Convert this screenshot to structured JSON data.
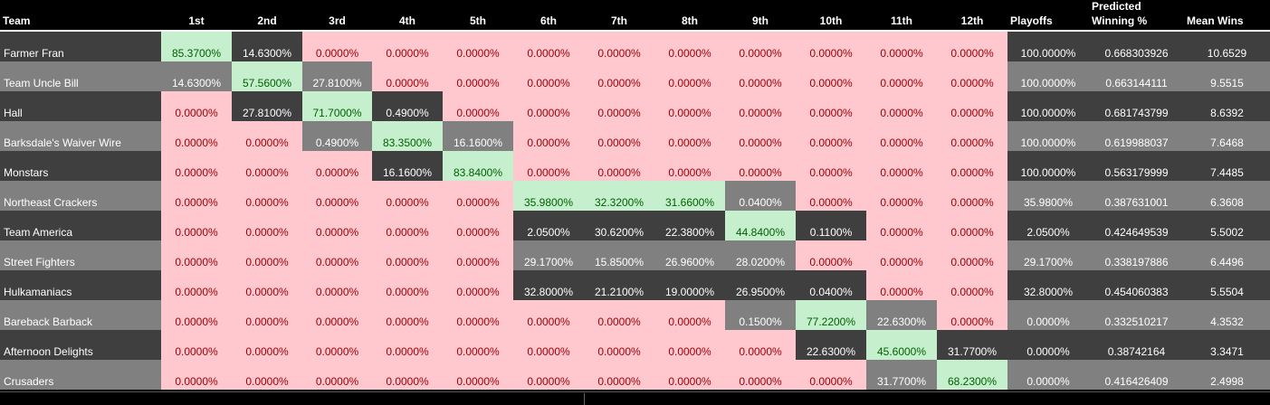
{
  "headers": {
    "team": "Team",
    "places": [
      "1st",
      "2nd",
      "3rd",
      "4th",
      "5th",
      "6th",
      "7th",
      "8th",
      "9th",
      "10th",
      "11th",
      "12th"
    ],
    "playoffs": "Playoffs",
    "predicted_line1": "Predicted",
    "predicted_line2": "Winning %",
    "mean_wins": "Mean Wins"
  },
  "rows": [
    {
      "team": "Farmer Fran",
      "places": [
        "85.3700%",
        "14.6300%",
        "0.0000%",
        "0.0000%",
        "0.0000%",
        "0.0000%",
        "0.0000%",
        "0.0000%",
        "0.0000%",
        "0.0000%",
        "0.0000%",
        "0.0000%"
      ],
      "playoffs": "100.0000%",
      "predicted": "0.668303926",
      "mean_wins": "10.6529"
    },
    {
      "team": "Team Uncle Bill",
      "places": [
        "14.6300%",
        "57.5600%",
        "27.8100%",
        "0.0000%",
        "0.0000%",
        "0.0000%",
        "0.0000%",
        "0.0000%",
        "0.0000%",
        "0.0000%",
        "0.0000%",
        "0.0000%"
      ],
      "playoffs": "100.0000%",
      "predicted": "0.663144111",
      "mean_wins": "9.5515"
    },
    {
      "team": "Hall",
      "places": [
        "0.0000%",
        "27.8100%",
        "71.7000%",
        "0.4900%",
        "0.0000%",
        "0.0000%",
        "0.0000%",
        "0.0000%",
        "0.0000%",
        "0.0000%",
        "0.0000%",
        "0.0000%"
      ],
      "playoffs": "100.0000%",
      "predicted": "0.681743799",
      "mean_wins": "8.6392"
    },
    {
      "team": "Barksdale's Waiver Wire",
      "places": [
        "0.0000%",
        "0.0000%",
        "0.4900%",
        "83.3500%",
        "16.1600%",
        "0.0000%",
        "0.0000%",
        "0.0000%",
        "0.0000%",
        "0.0000%",
        "0.0000%",
        "0.0000%"
      ],
      "playoffs": "100.0000%",
      "predicted": "0.619988037",
      "mean_wins": "7.6468"
    },
    {
      "team": "Monstars",
      "places": [
        "0.0000%",
        "0.0000%",
        "0.0000%",
        "16.1600%",
        "83.8400%",
        "0.0000%",
        "0.0000%",
        "0.0000%",
        "0.0000%",
        "0.0000%",
        "0.0000%",
        "0.0000%"
      ],
      "playoffs": "100.0000%",
      "predicted": "0.563179999",
      "mean_wins": "7.4485"
    },
    {
      "team": "Northeast Crackers",
      "places": [
        "0.0000%",
        "0.0000%",
        "0.0000%",
        "0.0000%",
        "0.0000%",
        "35.9800%",
        "32.3200%",
        "31.6600%",
        "0.0400%",
        "0.0000%",
        "0.0000%",
        "0.0000%"
      ],
      "playoffs": "35.9800%",
      "predicted": "0.387631001",
      "mean_wins": "6.3608"
    },
    {
      "team": "Team America",
      "places": [
        "0.0000%",
        "0.0000%",
        "0.0000%",
        "0.0000%",
        "0.0000%",
        "2.0500%",
        "30.6200%",
        "22.3800%",
        "44.8400%",
        "0.1100%",
        "0.0000%",
        "0.0000%"
      ],
      "playoffs": "2.0500%",
      "predicted": "0.424649539",
      "mean_wins": "5.5002"
    },
    {
      "team": "Street Fighters",
      "places": [
        "0.0000%",
        "0.0000%",
        "0.0000%",
        "0.0000%",
        "0.0000%",
        "29.1700%",
        "15.8500%",
        "26.9600%",
        "28.0200%",
        "0.0000%",
        "0.0000%",
        "0.0000%"
      ],
      "playoffs": "29.1700%",
      "predicted": "0.338197886",
      "mean_wins": "6.4496"
    },
    {
      "team": "Hulkamaniacs",
      "places": [
        "0.0000%",
        "0.0000%",
        "0.0000%",
        "0.0000%",
        "0.0000%",
        "32.8000%",
        "21.2100%",
        "19.0000%",
        "26.9500%",
        "0.0400%",
        "0.0000%",
        "0.0000%"
      ],
      "playoffs": "32.8000%",
      "predicted": "0.454060383",
      "mean_wins": "5.5504"
    },
    {
      "team": "Bareback Barback",
      "places": [
        "0.0000%",
        "0.0000%",
        "0.0000%",
        "0.0000%",
        "0.0000%",
        "0.0000%",
        "0.0000%",
        "0.0000%",
        "0.1500%",
        "77.2200%",
        "22.6300%",
        "0.0000%"
      ],
      "playoffs": "0.0000%",
      "predicted": "0.332510217",
      "mean_wins": "4.3532"
    },
    {
      "team": "Afternoon Delights",
      "places": [
        "0.0000%",
        "0.0000%",
        "0.0000%",
        "0.0000%",
        "0.0000%",
        "0.0000%",
        "0.0000%",
        "0.0000%",
        "0.0000%",
        "22.6300%",
        "45.6000%",
        "31.7700%"
      ],
      "playoffs": "0.0000%",
      "predicted": "0.38742164",
      "mean_wins": "3.3471"
    },
    {
      "team": "Crusaders",
      "places": [
        "0.0000%",
        "0.0000%",
        "0.0000%",
        "0.0000%",
        "0.0000%",
        "0.0000%",
        "0.0000%",
        "0.0000%",
        "0.0000%",
        "0.0000%",
        "31.7700%",
        "68.2300%"
      ],
      "playoffs": "0.0000%",
      "predicted": "0.416426409",
      "mean_wins": "2.4998"
    }
  ],
  "cell_styles": [
    [
      "g",
      "d",
      "p",
      "p",
      "p",
      "p",
      "p",
      "p",
      "p",
      "p",
      "p",
      "p"
    ],
    [
      "m",
      "g",
      "m",
      "p",
      "p",
      "p",
      "p",
      "p",
      "p",
      "p",
      "p",
      "p"
    ],
    [
      "p",
      "d",
      "g",
      "d",
      "p",
      "p",
      "p",
      "p",
      "p",
      "p",
      "p",
      "p"
    ],
    [
      "p",
      "p",
      "m",
      "g",
      "m",
      "p",
      "p",
      "p",
      "p",
      "p",
      "p",
      "p"
    ],
    [
      "p",
      "p",
      "p",
      "d",
      "g",
      "p",
      "p",
      "p",
      "p",
      "p",
      "p",
      "p"
    ],
    [
      "p",
      "p",
      "p",
      "p",
      "p",
      "g",
      "g",
      "g",
      "m",
      "p",
      "p",
      "p"
    ],
    [
      "p",
      "p",
      "p",
      "p",
      "p",
      "d",
      "d",
      "d",
      "g",
      "d",
      "p",
      "p"
    ],
    [
      "p",
      "p",
      "p",
      "p",
      "p",
      "m",
      "m",
      "m",
      "m",
      "p",
      "p",
      "p"
    ],
    [
      "p",
      "p",
      "p",
      "p",
      "p",
      "d",
      "d",
      "d",
      "d",
      "d",
      "p",
      "p"
    ],
    [
      "p",
      "p",
      "p",
      "p",
      "p",
      "p",
      "p",
      "p",
      "m",
      "g",
      "m",
      "p"
    ],
    [
      "p",
      "p",
      "p",
      "p",
      "p",
      "p",
      "p",
      "p",
      "p",
      "d",
      "g",
      "d"
    ],
    [
      "p",
      "p",
      "p",
      "p",
      "p",
      "p",
      "p",
      "p",
      "p",
      "p",
      "m",
      "g"
    ]
  ],
  "colors": {
    "dark_row": "#3f3f3f",
    "mid_row": "#808080",
    "pink_fill": "#ffc7ce",
    "green_fill": "#c6efce"
  }
}
